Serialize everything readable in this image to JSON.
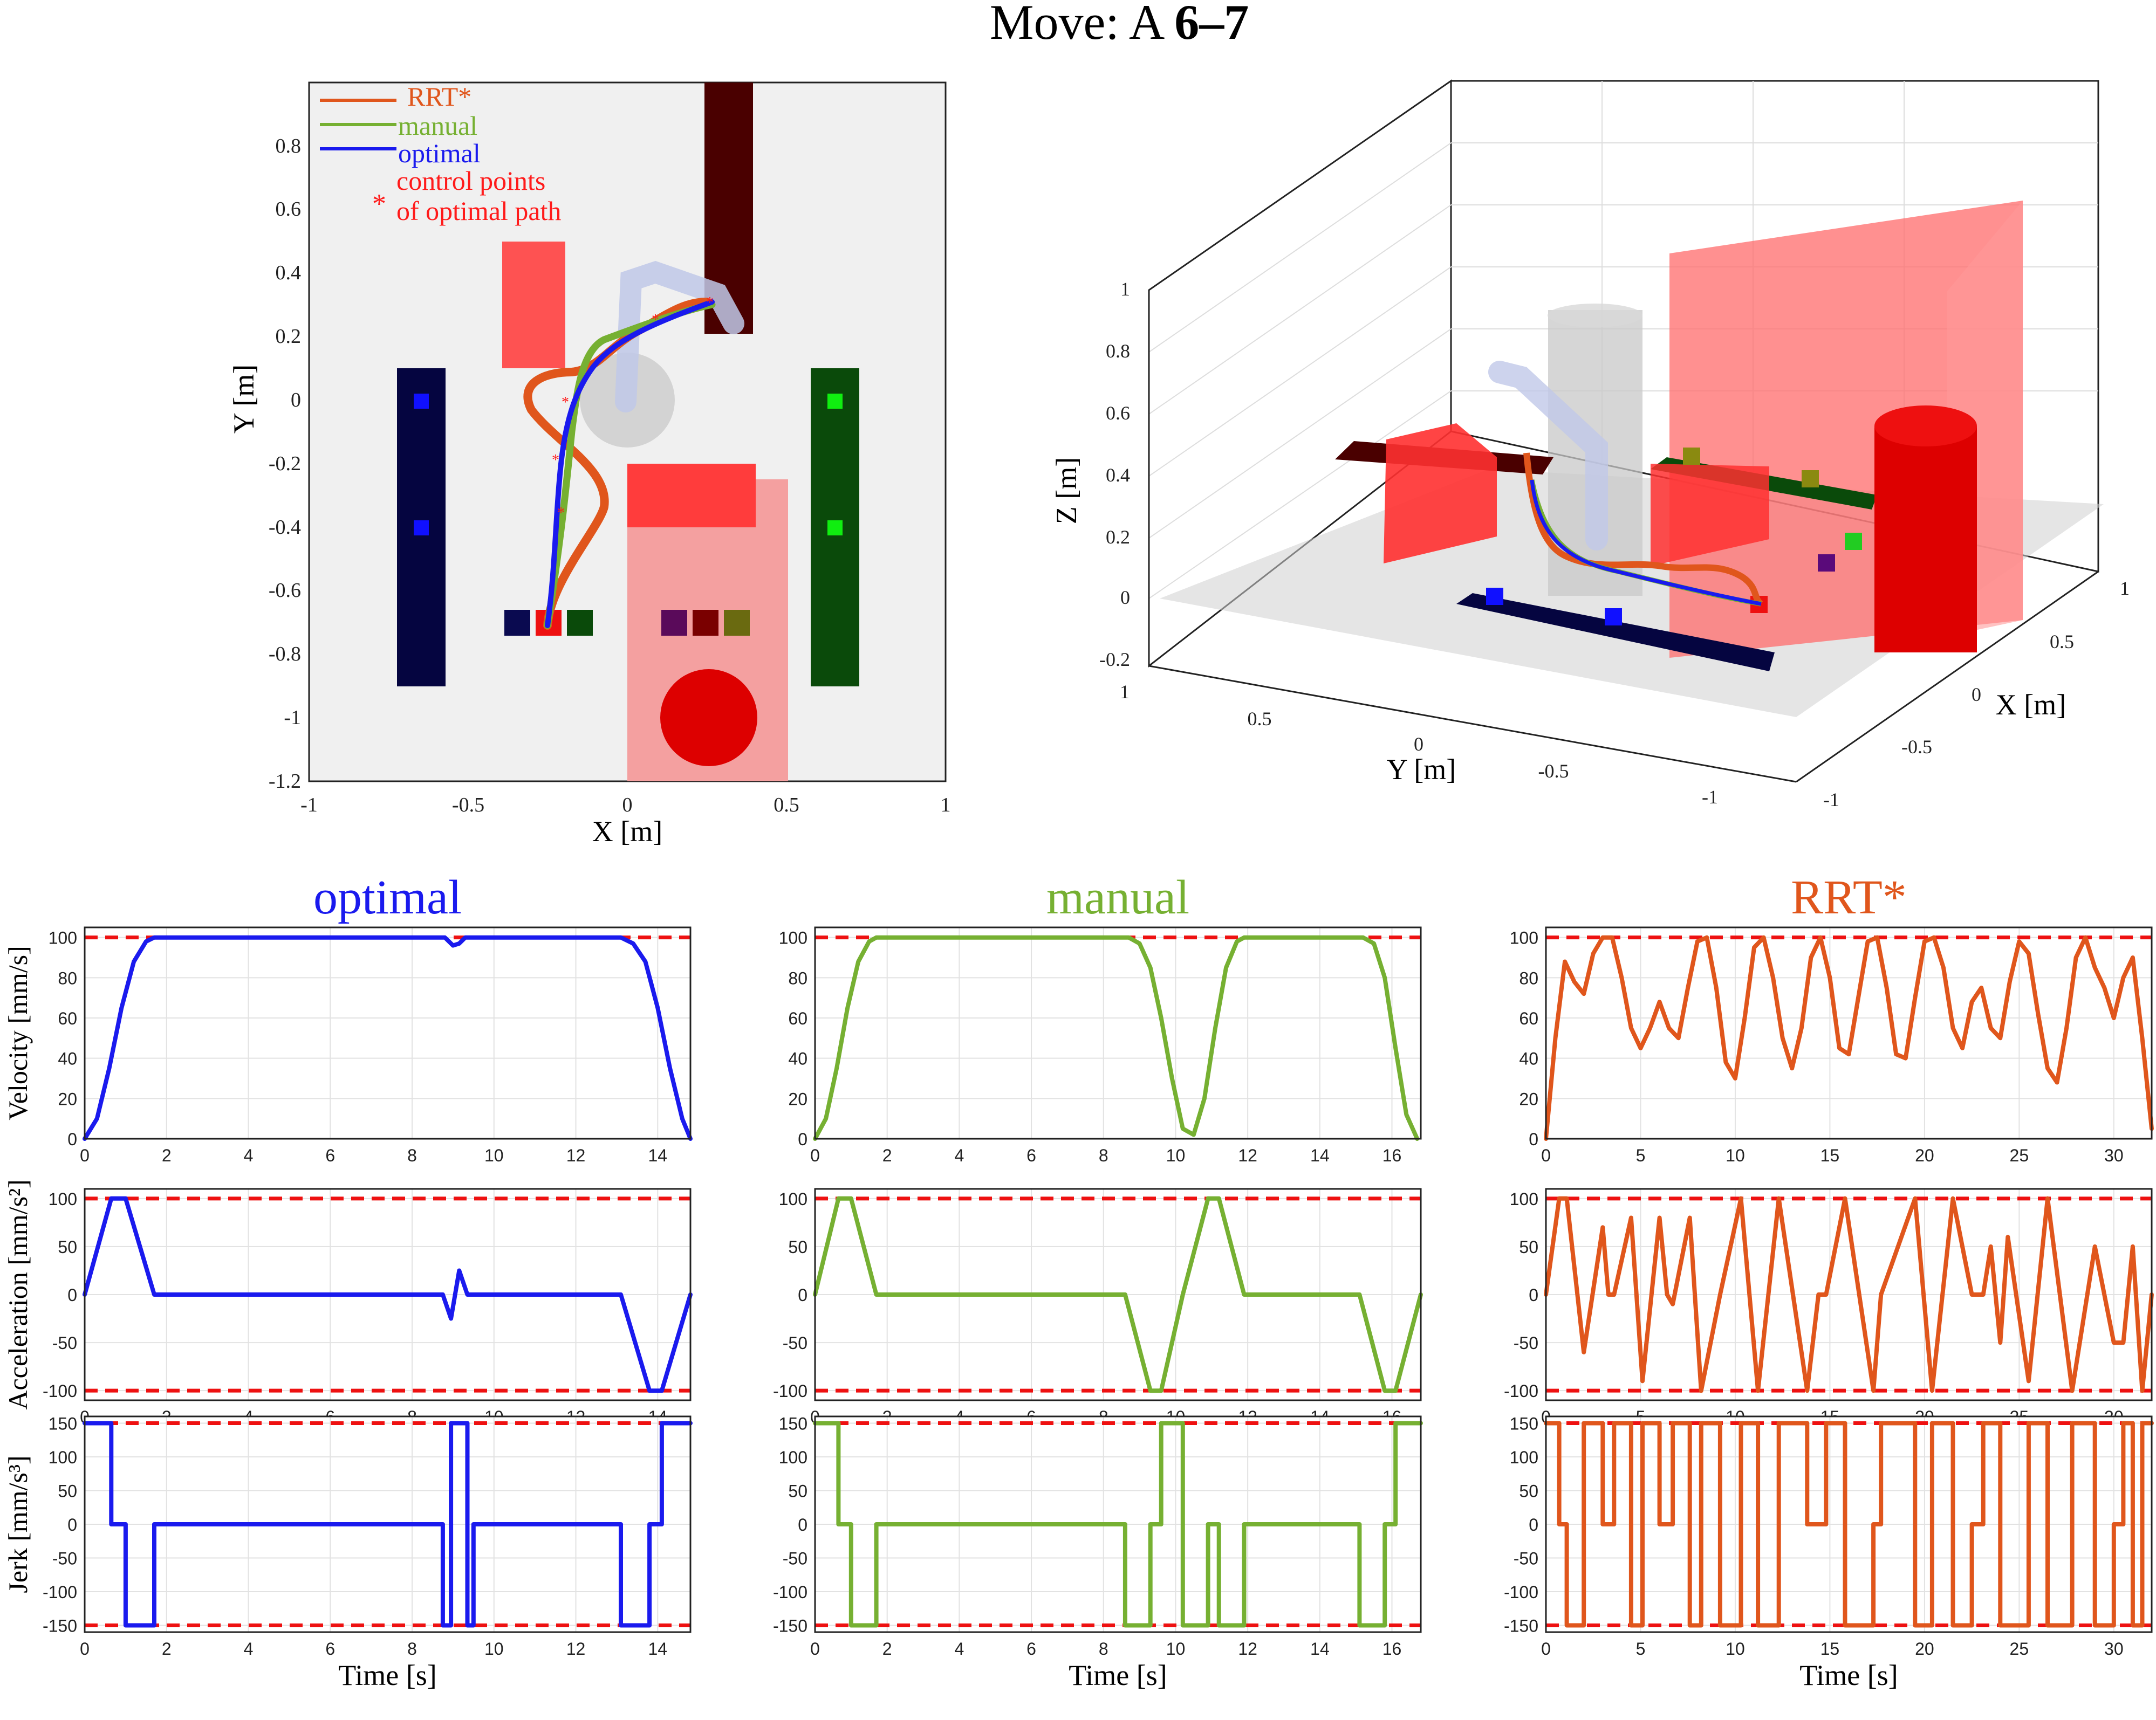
{
  "title": {
    "prefix": "Move: A ",
    "bold": "6–7"
  },
  "colors": {
    "optimal": "#1a1aee",
    "manual": "#76b032",
    "rrt": "#e0561c",
    "limit": "#ee1111",
    "control": "#ff1a1a"
  },
  "top_view": {
    "xlabel": "X [m]",
    "ylabel": "Y [m]",
    "xticks": [
      "-1",
      "-0.5",
      "0",
      "0.5",
      "1"
    ],
    "yticks": [
      "0.8",
      "0.6",
      "0.4",
      "0.2",
      "0",
      "-0.2",
      "-0.4",
      "-0.6",
      "-0.8",
      "-1",
      "-1.2"
    ],
    "legend": {
      "rrt": "RRT*",
      "manual": "manual",
      "optimal": "optimal",
      "control1": "control points",
      "control2": "of optimal path"
    }
  },
  "view3d": {
    "xlabel": "X [m]",
    "ylabel": "Y [m]",
    "zlabel": "Z [m]",
    "zticks": [
      "1",
      "0.8",
      "0.6",
      "0.4",
      "0.2",
      "0",
      "-0.2"
    ],
    "yticks": [
      "1",
      "0.5",
      "0",
      "-0.5",
      "-1"
    ],
    "xticks": [
      "1",
      "0.5",
      "0",
      "-0.5",
      "-1"
    ]
  },
  "chart_data": [
    {
      "type": "line",
      "panel": "optimal-velocity",
      "title": "optimal",
      "ylabel": "Velocity [mm/s]",
      "xlim": [
        0,
        14.8
      ],
      "ylim": [
        0,
        105
      ],
      "xticks": [
        "0",
        "2",
        "4",
        "6",
        "8",
        "10",
        "12",
        "14"
      ],
      "yticks": [
        "0",
        "20",
        "40",
        "60",
        "80",
        "100"
      ],
      "limits": [
        100
      ],
      "x": [
        0,
        0.3,
        0.6,
        0.9,
        1.2,
        1.5,
        1.7,
        8.8,
        9.0,
        9.15,
        9.3,
        13.1,
        13.4,
        13.7,
        14.0,
        14.3,
        14.6,
        14.8
      ],
      "y": [
        0,
        10,
        35,
        65,
        88,
        98,
        100,
        100,
        96,
        97,
        100,
        100,
        97,
        88,
        65,
        35,
        10,
        0
      ]
    },
    {
      "type": "line",
      "panel": "manual-velocity",
      "title": "manual",
      "ylabel": "Velocity [mm/s]",
      "xlim": [
        0,
        16.8
      ],
      "ylim": [
        0,
        105
      ],
      "xticks": [
        "0",
        "2",
        "4",
        "6",
        "8",
        "10",
        "12",
        "14",
        "16"
      ],
      "yticks": [
        "0",
        "20",
        "40",
        "60",
        "80",
        "100"
      ],
      "limits": [
        100
      ],
      "x": [
        0,
        0.3,
        0.6,
        0.9,
        1.2,
        1.5,
        1.7,
        8.7,
        9.0,
        9.3,
        9.6,
        9.9,
        10.2,
        10.5,
        10.8,
        11.1,
        11.4,
        11.7,
        11.9,
        15.2,
        15.5,
        15.8,
        16.1,
        16.4,
        16.7
      ],
      "y": [
        0,
        10,
        35,
        65,
        88,
        98,
        100,
        100,
        97,
        85,
        60,
        30,
        5,
        2,
        20,
        55,
        85,
        98,
        100,
        100,
        97,
        80,
        45,
        12,
        0
      ]
    },
    {
      "type": "line",
      "panel": "rrt-velocity",
      "title": "RRT*",
      "ylabel": "Velocity [mm/s]",
      "xlim": [
        0,
        32
      ],
      "ylim": [
        0,
        105
      ],
      "xticks": [
        "0",
        "5",
        "10",
        "15",
        "20",
        "25",
        "30"
      ],
      "yticks": [
        "0",
        "20",
        "40",
        "60",
        "80",
        "100"
      ],
      "limits": [
        100
      ],
      "x": [
        0,
        0.5,
        1,
        1.5,
        2,
        2.5,
        3,
        3.5,
        4,
        4.5,
        5,
        5.5,
        6,
        6.5,
        7,
        7.5,
        8,
        8.5,
        9,
        9.5,
        10,
        10.5,
        11,
        11.5,
        12,
        12.5,
        13,
        13.5,
        14,
        14.5,
        15,
        15.5,
        16,
        16.5,
        17,
        17.5,
        18,
        18.5,
        19,
        19.5,
        20,
        20.5,
        21,
        21.5,
        22,
        22.5,
        23,
        23.5,
        24,
        24.5,
        25,
        25.5,
        26,
        26.5,
        27,
        27.5,
        28,
        28.5,
        29,
        29.5,
        30,
        30.5,
        31,
        31.5,
        32
      ],
      "y": [
        0,
        50,
        88,
        78,
        72,
        92,
        100,
        100,
        80,
        55,
        45,
        55,
        68,
        55,
        50,
        75,
        98,
        100,
        75,
        38,
        30,
        60,
        95,
        100,
        80,
        50,
        35,
        55,
        90,
        100,
        80,
        45,
        42,
        70,
        98,
        100,
        75,
        42,
        40,
        70,
        98,
        100,
        85,
        55,
        45,
        68,
        75,
        55,
        50,
        78,
        98,
        92,
        62,
        35,
        28,
        55,
        90,
        100,
        85,
        75,
        60,
        80,
        90,
        50,
        5
      ]
    },
    {
      "type": "line",
      "panel": "optimal-acceleration",
      "ylabel": "Acceleration [mm/s²]",
      "xlim": [
        0,
        14.8
      ],
      "ylim": [
        -110,
        110
      ],
      "xticks": [
        "0",
        "2",
        "4",
        "6",
        "8",
        "10",
        "12",
        "14"
      ],
      "yticks": [
        "-100",
        "-50",
        "0",
        "50",
        "100"
      ],
      "limits": [
        100,
        -100
      ],
      "x": [
        0,
        0.65,
        1.0,
        1.7,
        8.75,
        8.95,
        9.15,
        9.35,
        13.1,
        13.8,
        14.1,
        14.8
      ],
      "y": [
        0,
        100,
        100,
        0,
        0,
        -25,
        25,
        0,
        0,
        -100,
        -100,
        0
      ]
    },
    {
      "type": "line",
      "panel": "manual-acceleration",
      "ylabel": "Acceleration [mm/s²]",
      "xlim": [
        0,
        16.8
      ],
      "ylim": [
        -110,
        110
      ],
      "xticks": [
        "0",
        "2",
        "4",
        "6",
        "8",
        "10",
        "12",
        "14",
        "16"
      ],
      "yticks": [
        "-100",
        "-50",
        "0",
        "50",
        "100"
      ],
      "limits": [
        100,
        -100
      ],
      "x": [
        0,
        0.65,
        1.0,
        1.7,
        8.6,
        9.3,
        9.6,
        10.2,
        10.9,
        11.2,
        11.9,
        15.1,
        15.8,
        16.1,
        16.8
      ],
      "y": [
        0,
        100,
        100,
        0,
        0,
        -100,
        -100,
        0,
        100,
        100,
        0,
        0,
        -100,
        -100,
        0
      ]
    },
    {
      "type": "line",
      "panel": "rrt-acceleration",
      "ylabel": "Acceleration [mm/s²]",
      "xlim": [
        0,
        32
      ],
      "ylim": [
        -110,
        110
      ],
      "xticks": [
        "0",
        "5",
        "10",
        "15",
        "20",
        "25",
        "30"
      ],
      "yticks": [
        "-100",
        "-50",
        "0",
        "50",
        "100"
      ],
      "limits": [
        100,
        -100
      ],
      "x": [
        0,
        0.7,
        1.1,
        2.0,
        3.0,
        3.3,
        3.6,
        4.5,
        5.1,
        6.0,
        6.4,
        6.7,
        7.6,
        8.2,
        9.2,
        10.3,
        11.2,
        12.3,
        13.8,
        14.4,
        14.8,
        15.8,
        17.3,
        17.7,
        19.5,
        20.4,
        21.5,
        22.5,
        23.1,
        23.5,
        24.0,
        24.4,
        25.5,
        26.5,
        27.8,
        29.0,
        30.0,
        30.5,
        31.0,
        31.5,
        32.0
      ],
      "y": [
        0,
        100,
        100,
        -60,
        70,
        0,
        0,
        80,
        -90,
        80,
        0,
        -10,
        80,
        -100,
        0,
        100,
        -100,
        100,
        -100,
        0,
        0,
        100,
        -100,
        0,
        100,
        -100,
        100,
        0,
        0,
        50,
        -50,
        60,
        -90,
        100,
        -100,
        50,
        -50,
        -50,
        50,
        -100,
        0
      ]
    },
    {
      "type": "line",
      "panel": "optimal-jerk",
      "ylabel": "Jerk [mm/s³]",
      "xlabel": "Time [s]",
      "xlim": [
        0,
        14.8
      ],
      "ylim": [
        -160,
        160
      ],
      "xticks": [
        "0",
        "2",
        "4",
        "6",
        "8",
        "10",
        "12",
        "14"
      ],
      "yticks": [
        "-150",
        "-100",
        "-50",
        "0",
        "50",
        "100",
        "150"
      ],
      "limits": [
        150,
        -150
      ],
      "x": [
        0,
        0.65,
        0.65,
        1.0,
        1.0,
        1.7,
        1.7,
        8.75,
        8.75,
        8.95,
        8.95,
        9.35,
        9.35,
        9.5,
        9.5,
        13.1,
        13.1,
        13.8,
        13.8,
        14.1,
        14.1,
        14.8
      ],
      "y": [
        150,
        150,
        0,
        0,
        -150,
        -150,
        0,
        0,
        -150,
        -150,
        150,
        150,
        -150,
        -150,
        0,
        0,
        -150,
        -150,
        0,
        0,
        150,
        150
      ]
    },
    {
      "type": "line",
      "panel": "manual-jerk",
      "ylabel": "Jerk [mm/s³]",
      "xlabel": "Time [s]",
      "xlim": [
        0,
        16.8
      ],
      "ylim": [
        -160,
        160
      ],
      "xticks": [
        "0",
        "2",
        "4",
        "6",
        "8",
        "10",
        "12",
        "14",
        "16"
      ],
      "yticks": [
        "-150",
        "-100",
        "-50",
        "0",
        "50",
        "100",
        "150"
      ],
      "limits": [
        150,
        -150
      ],
      "x": [
        0,
        0.65,
        0.65,
        1.0,
        1.0,
        1.7,
        1.7,
        8.6,
        8.6,
        9.3,
        9.3,
        9.6,
        9.6,
        10.2,
        10.2,
        10.9,
        10.9,
        11.2,
        11.2,
        11.9,
        11.9,
        15.1,
        15.1,
        15.8,
        15.8,
        16.1,
        16.1,
        16.8
      ],
      "y": [
        150,
        150,
        0,
        0,
        -150,
        -150,
        0,
        0,
        -150,
        -150,
        0,
        0,
        150,
        150,
        -150,
        -150,
        0,
        0,
        -150,
        -150,
        0,
        0,
        -150,
        -150,
        0,
        0,
        150,
        150
      ]
    },
    {
      "type": "line",
      "panel": "rrt-jerk",
      "ylabel": "Jerk [mm/s³]",
      "xlabel": "Time [s]",
      "xlim": [
        0,
        32
      ],
      "ylim": [
        -160,
        160
      ],
      "xticks": [
        "0",
        "5",
        "10",
        "15",
        "20",
        "25",
        "30"
      ],
      "yticks": [
        "-150",
        "-100",
        "-50",
        "0",
        "50",
        "100",
        "150"
      ],
      "limits": [
        150,
        -150
      ],
      "x": [
        0,
        0.7,
        0.7,
        1.1,
        1.1,
        2.0,
        2.0,
        3.0,
        3.0,
        3.6,
        3.6,
        4.5,
        4.5,
        5.1,
        5.1,
        6.0,
        6.0,
        6.7,
        6.7,
        7.6,
        7.6,
        8.2,
        8.2,
        9.2,
        9.2,
        10.3,
        10.3,
        11.2,
        11.2,
        12.3,
        12.3,
        13.8,
        13.8,
        14.8,
        14.8,
        15.8,
        15.8,
        17.3,
        17.3,
        17.7,
        17.7,
        19.5,
        19.5,
        20.4,
        20.4,
        21.5,
        21.5,
        22.5,
        22.5,
        23.1,
        23.1,
        24.0,
        24.0,
        25.5,
        25.5,
        26.5,
        26.5,
        27.8,
        27.8,
        29.0,
        29.0,
        30.0,
        30.0,
        30.5,
        30.5,
        31.0,
        31.0,
        31.5,
        31.5,
        32.0
      ],
      "y": [
        150,
        150,
        0,
        0,
        -150,
        -150,
        150,
        150,
        0,
        0,
        150,
        150,
        -150,
        -150,
        150,
        150,
        0,
        0,
        150,
        150,
        -150,
        -150,
        150,
        150,
        -150,
        -150,
        150,
        150,
        -150,
        -150,
        150,
        150,
        0,
        0,
        150,
        150,
        -150,
        -150,
        0,
        0,
        150,
        150,
        -150,
        -150,
        150,
        150,
        -150,
        -150,
        0,
        0,
        150,
        150,
        -150,
        -150,
        150,
        150,
        -150,
        -150,
        150,
        150,
        -150,
        -150,
        0,
        0,
        150,
        150,
        -150,
        -150,
        150,
        150
      ]
    }
  ]
}
